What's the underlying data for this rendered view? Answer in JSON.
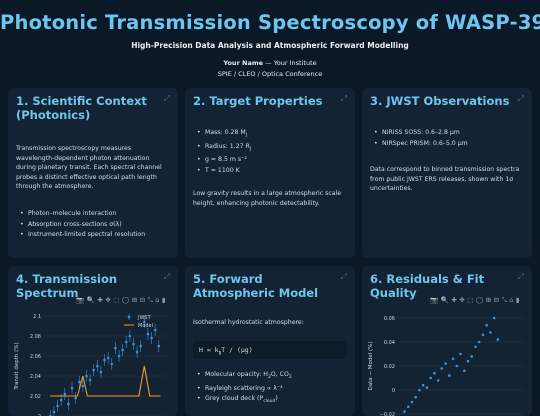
{
  "header": {
    "title": "Photonic Transmission Spectroscopy of WASP-39b",
    "subtitle": "High-Precision Data Analysis and Atmospheric Forward Modelling",
    "author_name": "Your Name",
    "author_sep": " — ",
    "institute": "Your Institute",
    "venue": "SPIE / CLEO / Optica Conference"
  },
  "icons": {
    "expand": "expand-icon",
    "toolbar": [
      "camera-icon",
      "zoom-icon",
      "plus-icon",
      "pan-icon",
      "box-select-icon",
      "lasso-icon",
      "zoom-in-icon",
      "zoom-out-icon",
      "autoscale-icon",
      "home-icon",
      "plotly-logo-icon"
    ]
  },
  "colors": {
    "accent": "#6ec6f0",
    "card": "#142333",
    "background": "#0b1826",
    "model": "#f39a2b",
    "data": "#3a93d9"
  },
  "cards": {
    "context": {
      "title": "1. Scientific Context (Photonics)",
      "body": "Transmission spectroscopy measures wavelength-dependent photon attenuation during planetary transit. Each spectral channel probes a distinct effective optical path length through the atmosphere.",
      "bullets": [
        "Photon–molecule interaction",
        "Absorption cross-sections σ(λ)",
        "Instrument-limited spectral resolution"
      ]
    },
    "target": {
      "title": "2. Target Properties",
      "bullets": [
        "Mass: 0.28 M",
        "Radius: 1.27 R",
        "g ≈ 8.5 m s⁻²",
        "T ≈ 1100 K"
      ],
      "sub": [
        "J",
        "J",
        "",
        "eq"
      ],
      "body": "Low gravity results in a large atmospheric scale height, enhancing photonic detectability."
    },
    "jwst": {
      "title": "3. JWST Observations",
      "bullets": [
        "NIRISS SOSS: 0.6–2.8 µm",
        "NIRSpec PRISM: 0.6–5.0 µm"
      ],
      "body": "Data correspond to binned transmission spectra from public JWST ERS releases, shown with 1σ uncertainties."
    },
    "spectrum": {
      "title": "4. Transmission Spectrum"
    },
    "forward": {
      "title": "5. Forward Atmospheric Model",
      "intro": "Isothermal hydrostatic atmosphere:",
      "eq_pre": "H = k",
      "eq_sub": "B",
      "eq_post": "T / (µg)",
      "bullets": [
        "Molecular opacity: H",
        "Rayleigh scattering ∝ λ⁻⁴",
        "Grey cloud deck (P"
      ],
      "bullet_tail": {
        "b1_sub1": "2",
        "b1_mid": "O, CO",
        "b1_sub2": "2",
        "b3_sub": "cloud",
        "b3_end": ")"
      }
    },
    "residuals": {
      "title": "6. Residuals & Fit Quality"
    }
  },
  "chart_data": [
    {
      "type": "scatter",
      "title": "",
      "ylabel": "Transit depth (%)",
      "xlabel": "",
      "ylim": [
        2.0,
        2.1
      ],
      "yticks": [
        "2",
        "2.02",
        "2.04",
        "2.06",
        "2.08",
        "2.1"
      ],
      "legend_placement": "top-right",
      "series": [
        {
          "name": "JWST",
          "mode": "markers+errorbars",
          "x": [
            0.62,
            0.66,
            0.7,
            0.74,
            0.78,
            0.82,
            0.86,
            0.9,
            0.94,
            0.98,
            1.02,
            1.06,
            1.1,
            1.14,
            1.18,
            1.22,
            1.26,
            1.3,
            1.34,
            1.38,
            1.42,
            1.46,
            1.5,
            1.54,
            1.58,
            1.62,
            1.66,
            1.7,
            1.74,
            1.78,
            1.82
          ],
          "y": [
            2.0,
            2.004,
            2.01,
            2.016,
            2.022,
            2.012,
            2.028,
            2.018,
            2.034,
            2.03,
            2.04,
            2.036,
            2.046,
            2.05,
            2.044,
            2.056,
            2.058,
            2.052,
            2.068,
            2.06,
            2.066,
            2.074,
            2.08,
            2.072,
            2.064,
            2.07,
            2.094,
            2.082,
            2.078,
            2.086,
            2.07
          ],
          "err": 0.006
        },
        {
          "name": "Model",
          "mode": "lines",
          "x": [
            0.62,
            0.8,
            0.92,
            0.98,
            1.03,
            1.08,
            1.13,
            1.2,
            1.3,
            1.4,
            1.5,
            1.55,
            1.6,
            1.66,
            1.72,
            1.78,
            1.84
          ],
          "y": [
            2.02,
            2.02,
            2.02,
            2.04,
            2.02,
            2.02,
            2.02,
            2.02,
            2.02,
            2.02,
            2.02,
            2.02,
            2.02,
            2.05,
            2.02,
            2.02,
            2.02
          ]
        }
      ]
    },
    {
      "type": "scatter",
      "title": "",
      "ylabel": "Data − Model (%)",
      "xlabel": "",
      "ylim": [
        -0.025,
        0.065
      ],
      "yticks": [
        "0.06",
        "0.04",
        "0.02",
        "0",
        "−0.02"
      ],
      "series": [
        {
          "name": "Residuals",
          "mode": "markers",
          "x": [
            0.62,
            0.66,
            0.7,
            0.74,
            0.78,
            0.82,
            0.86,
            0.9,
            0.94,
            0.98,
            1.02,
            1.06,
            1.1,
            1.14,
            1.18,
            1.22,
            1.26,
            1.3,
            1.34,
            1.38,
            1.42,
            1.46,
            1.5,
            1.54,
            1.58,
            1.62
          ],
          "y": [
            -0.018,
            -0.014,
            -0.01,
            -0.006,
            0.0,
            0.004,
            0.002,
            0.01,
            0.014,
            0.008,
            0.018,
            0.022,
            0.012,
            0.026,
            0.02,
            0.03,
            0.016,
            0.024,
            0.028,
            0.036,
            0.04,
            0.046,
            0.054,
            0.048,
            0.06,
            0.042
          ]
        }
      ]
    }
  ]
}
